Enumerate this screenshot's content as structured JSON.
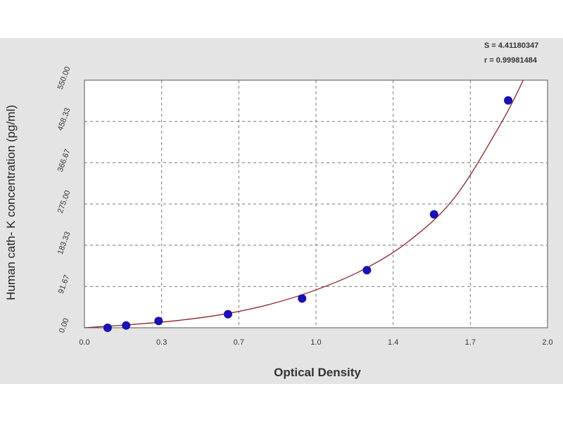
{
  "chart_data": {
    "type": "scatter",
    "xlabel": "Optical Density",
    "ylabel": "Human cath- K concentration (pg/ml)",
    "xlim": [
      0,
      2.0
    ],
    "ylim": [
      0,
      550
    ],
    "x_ticks": [
      "0.0",
      "0.3",
      "0.7",
      "1.0",
      "1.4",
      "1.7",
      "2.0"
    ],
    "y_ticks": [
      "0.00",
      "91.67",
      "183.33",
      "275.00",
      "366.67",
      "458.33",
      "550.00"
    ],
    "grid": true,
    "stats": [
      "S = 4.41180347",
      "r = 0.99981484"
    ],
    "points": {
      "x": [
        0.1,
        0.18,
        0.32,
        0.62,
        0.94,
        1.22,
        1.51,
        1.83
      ],
      "y": [
        0,
        5,
        15,
        30,
        65,
        128,
        252,
        505
      ]
    },
    "curve": {
      "x": [
        0.0,
        0.2,
        0.4,
        0.6,
        0.8,
        1.0,
        1.2,
        1.4,
        1.6,
        1.8,
        1.9
      ],
      "y": [
        0,
        7,
        16,
        30,
        52,
        84,
        128,
        192,
        290,
        455,
        555
      ]
    },
    "colors": {
      "point": "#1a10b4",
      "curve": "#8b2228",
      "grid": "#777777"
    }
  }
}
